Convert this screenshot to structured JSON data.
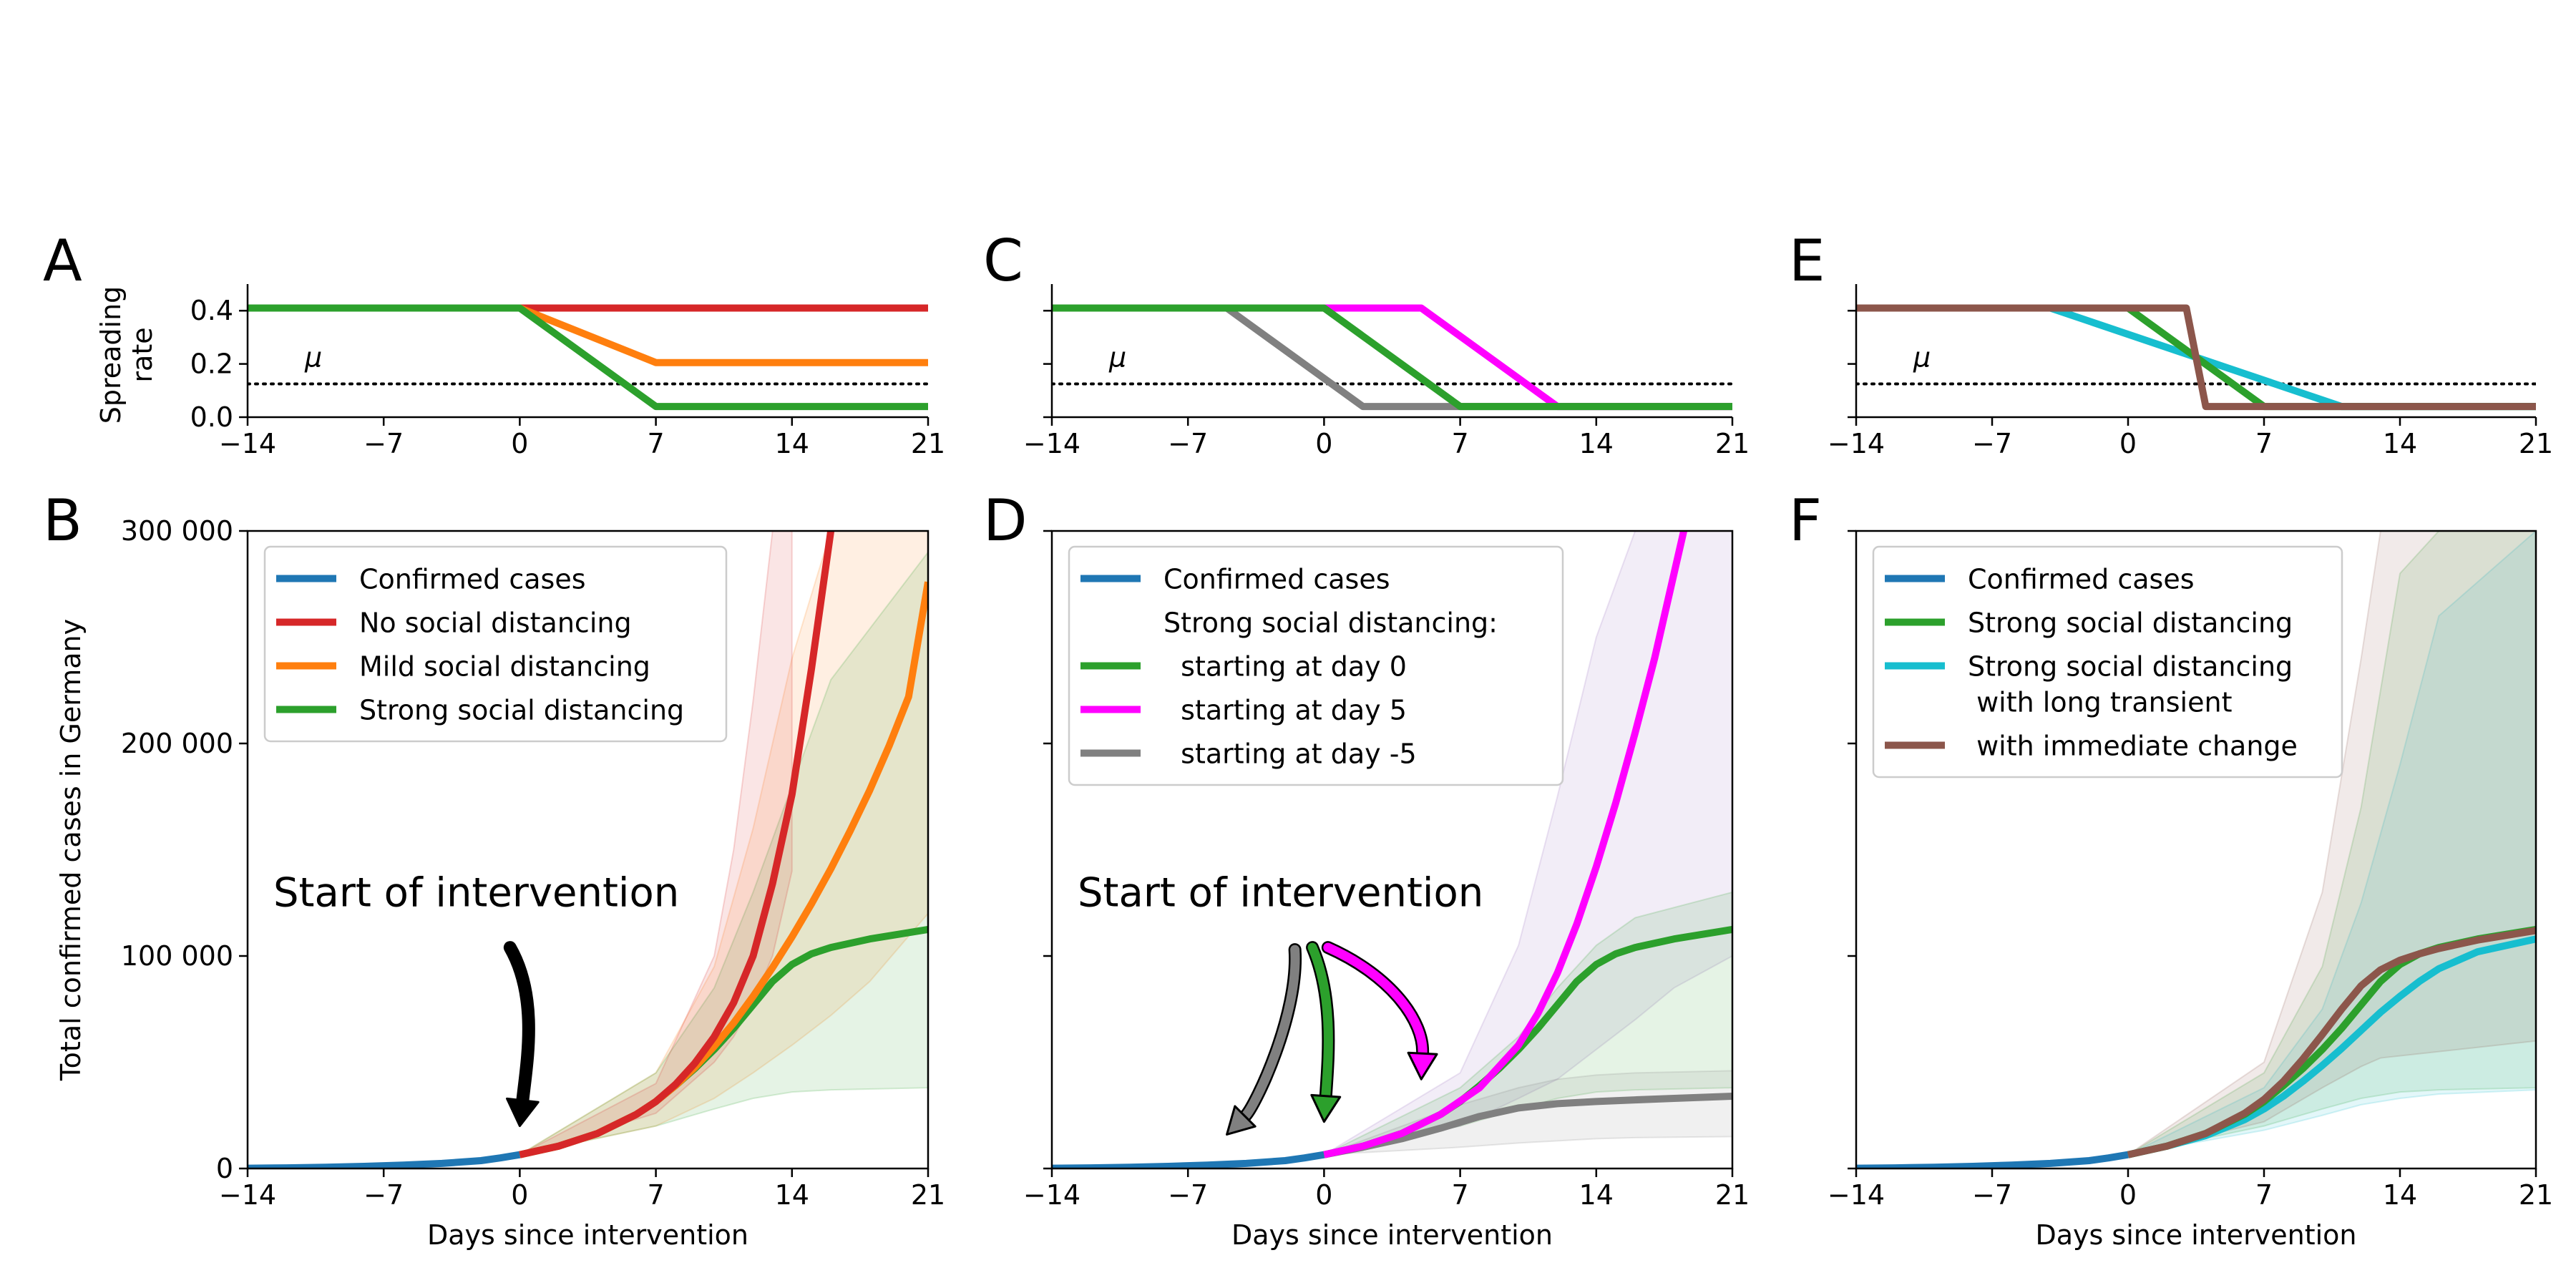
{
  "figure": {
    "panel_letters": [
      "A",
      "B",
      "C",
      "D",
      "E",
      "F"
    ],
    "mu_label": "μ",
    "annotation_text": "Start of intervention"
  },
  "chart_data": [
    {
      "panel": "A",
      "type": "line",
      "ylabel": "Spreading\nrate",
      "xlim": [
        -14,
        21
      ],
      "ylim": [
        0,
        0.5
      ],
      "xticks": [
        "−14",
        "−7",
        "0",
        "7",
        "14",
        "21"
      ],
      "yticks": [
        "0.0",
        "0.2",
        "0.4"
      ],
      "show_ytick_labels": true,
      "mu_value": 0.125,
      "series": [
        {
          "color": "#d62728",
          "x": [
            -14,
            0,
            21
          ],
          "y": [
            0.41,
            0.41,
            0.41
          ]
        },
        {
          "color": "#ff7f0e",
          "x": [
            -14,
            0,
            7,
            21
          ],
          "y": [
            0.41,
            0.41,
            0.205,
            0.205
          ]
        },
        {
          "color": "#2ca02c",
          "x": [
            -14,
            0,
            7,
            21
          ],
          "y": [
            0.41,
            0.41,
            0.04,
            0.04
          ]
        }
      ]
    },
    {
      "panel": "B",
      "type": "line",
      "ylabel": "Total confirmed cases in Germany",
      "xlabel": "Days since intervention",
      "xlim": [
        -14,
        21
      ],
      "ylim": [
        0,
        300000
      ],
      "xticks": [
        "−14",
        "−7",
        "0",
        "7",
        "14",
        "21"
      ],
      "yticks": [
        "0",
        "100 000",
        "200 000",
        "300 000"
      ],
      "show_ytick_labels": true,
      "legend": [
        "Confirmed cases",
        "No social distancing",
        "Mild social distancing",
        "Strong social distancing"
      ],
      "legend_colors": [
        "#1f77b4",
        "#d62728",
        "#ff7f0e",
        "#2ca02c"
      ],
      "series": [
        {
          "name": "Confirmed cases",
          "color": "#1f77b4",
          "x": [
            -14,
            -12,
            -10,
            -8,
            -6,
            -4,
            -2,
            -1,
            0
          ],
          "y": [
            150,
            300,
            600,
            1000,
            1600,
            2400,
            3700,
            5000,
            6500
          ]
        },
        {
          "name": "Strong social distancing",
          "color": "#2ca02c",
          "x": [
            0,
            2,
            4,
            6,
            7,
            8,
            9,
            10,
            11,
            12,
            13,
            14,
            15,
            16,
            18,
            21
          ],
          "y": [
            6500,
            10500,
            16500,
            25500,
            31500,
            39000,
            47000,
            56000,
            66000,
            77000,
            88000,
            96000,
            101000,
            104000,
            108000,
            112500
          ]
        },
        {
          "name": "Mild social distancing",
          "color": "#ff7f0e",
          "x": [
            0,
            2,
            4,
            6,
            7,
            8,
            9,
            10,
            11,
            12,
            13,
            14,
            15,
            16,
            17,
            18,
            19,
            20,
            21
          ],
          "y": [
            6500,
            10500,
            16500,
            25500,
            31500,
            39000,
            47500,
            57500,
            68500,
            81000,
            94500,
            109000,
            124500,
            141000,
            159000,
            178000,
            199000,
            222000,
            276000
          ]
        },
        {
          "name": "No social distancing",
          "color": "#d62728",
          "x": [
            0,
            2,
            4,
            6,
            7,
            8,
            9,
            10,
            11,
            12,
            13,
            14,
            15,
            16
          ],
          "y": [
            6500,
            10500,
            16500,
            25500,
            31500,
            39500,
            49500,
            62000,
            78000,
            100000,
            134000,
            176000,
            235000,
            300000
          ]
        }
      ],
      "bands": [
        {
          "color": "#ff7f0e",
          "x": [
            0,
            7,
            10,
            12,
            14,
            16,
            18,
            21
          ],
          "lower": [
            6500,
            20000,
            33000,
            45000,
            58000,
            72000,
            88000,
            120000
          ],
          "upper": [
            6500,
            45000,
            95000,
            160000,
            240000,
            300000,
            300000,
            300000
          ]
        },
        {
          "color": "#2ca02c",
          "x": [
            0,
            7,
            10,
            12,
            14,
            16,
            21
          ],
          "lower": [
            6500,
            20000,
            28000,
            33000,
            36000,
            37000,
            38000
          ],
          "upper": [
            6500,
            45000,
            85000,
            130000,
            180000,
            230000,
            290000
          ]
        },
        {
          "color": "#d62728",
          "x": [
            0,
            7,
            10,
            11,
            12,
            13,
            14
          ],
          "lower": [
            6500,
            26000,
            50000,
            62000,
            78000,
            100000,
            140000
          ],
          "upper": [
            6500,
            40000,
            100000,
            150000,
            220000,
            300000,
            300000
          ]
        }
      ],
      "annotations": [
        {
          "text_key": "annotation_text",
          "arrow_color": "#000000",
          "arrow_to_x": 0,
          "arrow_to_y": 20000
        }
      ]
    },
    {
      "panel": "C",
      "type": "line",
      "xlim": [
        -14,
        21
      ],
      "ylim": [
        0,
        0.5
      ],
      "xticks": [
        "−14",
        "−7",
        "0",
        "7",
        "14",
        "21"
      ],
      "yticks": [
        "",
        "",
        ""
      ],
      "show_ytick_labels": false,
      "mu_value": 0.125,
      "series": [
        {
          "color": "#ff00ff",
          "x": [
            -14,
            5,
            12,
            21
          ],
          "y": [
            0.41,
            0.41,
            0.04,
            0.04
          ]
        },
        {
          "color": "#808080",
          "x": [
            -14,
            -5,
            2,
            21
          ],
          "y": [
            0.41,
            0.41,
            0.04,
            0.04
          ]
        },
        {
          "color": "#2ca02c",
          "x": [
            -14,
            0,
            7,
            21
          ],
          "y": [
            0.41,
            0.41,
            0.04,
            0.04
          ]
        }
      ]
    },
    {
      "panel": "D",
      "type": "line",
      "xlabel": "Days since intervention",
      "xlim": [
        -14,
        21
      ],
      "ylim": [
        0,
        300000
      ],
      "xticks": [
        "−14",
        "−7",
        "0",
        "7",
        "14",
        "21"
      ],
      "yticks": [
        "",
        "",
        "",
        ""
      ],
      "show_ytick_labels": false,
      "legend": [
        "Confirmed cases",
        "Strong social distancing:",
        "  starting at day 0",
        "  starting at day 5",
        "  starting at day -5"
      ],
      "legend_colors": [
        "#1f77b4",
        "",
        "#2ca02c",
        "#ff00ff",
        "#808080"
      ],
      "series": [
        {
          "name": "Confirmed cases",
          "color": "#1f77b4",
          "x": [
            -14,
            -12,
            -10,
            -8,
            -6,
            -4,
            -2,
            -1,
            0
          ],
          "y": [
            150,
            300,
            600,
            1000,
            1600,
            2400,
            3700,
            5000,
            6500
          ]
        },
        {
          "name": "starting at day -5",
          "color": "#808080",
          "x": [
            0,
            2,
            4,
            6,
            8,
            10,
            12,
            14,
            16,
            18,
            21
          ],
          "y": [
            6500,
            10000,
            14000,
            19000,
            24500,
            28500,
            30500,
            31500,
            32300,
            33000,
            34000
          ]
        },
        {
          "name": "starting at day 0",
          "color": "#2ca02c",
          "x": [
            0,
            2,
            4,
            6,
            7,
            8,
            9,
            10,
            11,
            12,
            13,
            14,
            15,
            16,
            18,
            21
          ],
          "y": [
            6500,
            10500,
            16500,
            25500,
            31500,
            39000,
            47000,
            56000,
            66000,
            77000,
            88000,
            96000,
            101000,
            104000,
            108000,
            112500
          ]
        },
        {
          "name": "starting at day 5",
          "color": "#ff00ff",
          "x": [
            0,
            2,
            4,
            6,
            8,
            10,
            11,
            12,
            13,
            14,
            15,
            16,
            17,
            18.5
          ],
          "y": [
            6500,
            10500,
            16500,
            25500,
            38000,
            58000,
            73000,
            92000,
            115000,
            142000,
            172000,
            205000,
            240000,
            300000
          ]
        }
      ],
      "bands": [
        {
          "color": "#9467bd",
          "x": [
            0,
            7,
            10,
            12,
            14,
            16,
            18,
            21
          ],
          "lower": [
            6500,
            20000,
            33000,
            42000,
            56000,
            70000,
            85000,
            100000
          ],
          "upper": [
            6500,
            45000,
            105000,
            175000,
            250000,
            300000,
            300000,
            300000
          ]
        },
        {
          "color": "#2ca02c",
          "x": [
            0,
            7,
            10,
            12,
            14,
            16,
            21
          ],
          "lower": [
            6500,
            20000,
            28000,
            33000,
            36000,
            37000,
            38000
          ],
          "upper": [
            6500,
            38000,
            62000,
            85000,
            105000,
            118000,
            130000
          ]
        },
        {
          "color": "#808080",
          "x": [
            0,
            7,
            10,
            12,
            14,
            16,
            21
          ],
          "lower": [
            6500,
            10000,
            12000,
            13000,
            14000,
            14500,
            15000
          ],
          "upper": [
            6500,
            30000,
            38000,
            42000,
            44000,
            45000,
            46000
          ]
        }
      ],
      "annotations": [
        {
          "text_key": "annotation_text",
          "arrow_color": "#808080",
          "arrow_to_x": -5,
          "arrow_to_y": 16000
        },
        {
          "text_key": "annotation_text",
          "arrow_color": "#2ca02c",
          "arrow_to_x": 0,
          "arrow_to_y": 22000
        },
        {
          "text_key": "annotation_text",
          "arrow_color": "#ff00ff",
          "arrow_to_x": 5,
          "arrow_to_y": 42000
        }
      ]
    },
    {
      "panel": "E",
      "type": "line",
      "xlim": [
        -14,
        21
      ],
      "ylim": [
        0,
        0.5
      ],
      "xticks": [
        "−14",
        "−7",
        "0",
        "7",
        "14",
        "21"
      ],
      "yticks": [
        "",
        "",
        ""
      ],
      "show_ytick_labels": false,
      "mu_value": 0.125,
      "series": [
        {
          "color": "#17becf",
          "x": [
            -14,
            -4,
            11,
            21
          ],
          "y": [
            0.41,
            0.41,
            0.04,
            0.04
          ]
        },
        {
          "color": "#2ca02c",
          "x": [
            -14,
            0,
            7,
            21
          ],
          "y": [
            0.41,
            0.41,
            0.04,
            0.04
          ]
        },
        {
          "color": "#8c564b",
          "x": [
            -14,
            3,
            4,
            21
          ],
          "y": [
            0.41,
            0.41,
            0.04,
            0.04
          ]
        }
      ]
    },
    {
      "panel": "F",
      "type": "line",
      "xlabel": "Days since intervention",
      "xlim": [
        -14,
        21
      ],
      "ylim": [
        0,
        300000
      ],
      "xticks": [
        "−14",
        "−7",
        "0",
        "7",
        "14",
        "21"
      ],
      "yticks": [
        "",
        "",
        "",
        ""
      ],
      "show_ytick_labels": false,
      "legend": [
        "Confirmed cases",
        "Strong social distancing",
        "Strong social distancing\n with long transient",
        " with immediate change"
      ],
      "legend_colors": [
        "#1f77b4",
        "#2ca02c",
        "#17becf",
        "#8c564b"
      ],
      "series": [
        {
          "name": "Confirmed cases",
          "color": "#1f77b4",
          "x": [
            -14,
            -12,
            -10,
            -8,
            -6,
            -4,
            -2,
            -1,
            0
          ],
          "y": [
            150,
            300,
            600,
            1000,
            1600,
            2400,
            3700,
            5000,
            6500
          ]
        },
        {
          "name": "Strong social distancing with long transient",
          "color": "#17becf",
          "x": [
            0,
            2,
            4,
            6,
            7,
            8,
            9,
            10,
            11,
            12,
            13,
            14,
            15,
            16,
            18,
            21
          ],
          "y": [
            6500,
            10500,
            15500,
            23000,
            28000,
            34000,
            41000,
            48500,
            56500,
            65000,
            73500,
            81000,
            88000,
            94000,
            102000,
            108000
          ]
        },
        {
          "name": "Strong social distancing",
          "color": "#2ca02c",
          "x": [
            0,
            2,
            4,
            6,
            7,
            8,
            9,
            10,
            11,
            12,
            13,
            14,
            15,
            16,
            18,
            21
          ],
          "y": [
            6500,
            10500,
            16500,
            25500,
            31500,
            39000,
            47000,
            56000,
            66000,
            77000,
            88000,
            96000,
            101000,
            104000,
            108000,
            112500
          ]
        },
        {
          "name": "with immediate change",
          "color": "#8c564b",
          "x": [
            0,
            2,
            4,
            6,
            7,
            8,
            9,
            10,
            11,
            12,
            13,
            14,
            15,
            16,
            18,
            21
          ],
          "y": [
            6500,
            10500,
            16500,
            26000,
            32500,
            41000,
            51500,
            63000,
            75000,
            86000,
            93500,
            98000,
            101000,
            103500,
            107500,
            112000
          ]
        }
      ],
      "bands": [
        {
          "color": "#2ca02c",
          "x": [
            0,
            7,
            10,
            12,
            14,
            16,
            21
          ],
          "lower": [
            6500,
            20000,
            28000,
            33000,
            36000,
            37000,
            38000
          ],
          "upper": [
            6500,
            45000,
            95000,
            170000,
            280000,
            300000,
            300000
          ]
        },
        {
          "color": "#17becf",
          "x": [
            0,
            7,
            10,
            12,
            14,
            16,
            21
          ],
          "lower": [
            6500,
            18000,
            25000,
            30000,
            33000,
            35000,
            37000
          ],
          "upper": [
            6500,
            38000,
            75000,
            125000,
            190000,
            260000,
            300000
          ]
        },
        {
          "color": "#8c564b",
          "x": [
            0,
            7,
            10,
            12,
            13,
            21
          ],
          "lower": [
            6500,
            22000,
            38000,
            48000,
            52000,
            60000
          ],
          "upper": [
            6500,
            50000,
            130000,
            240000,
            300000,
            300000
          ]
        }
      ]
    }
  ]
}
